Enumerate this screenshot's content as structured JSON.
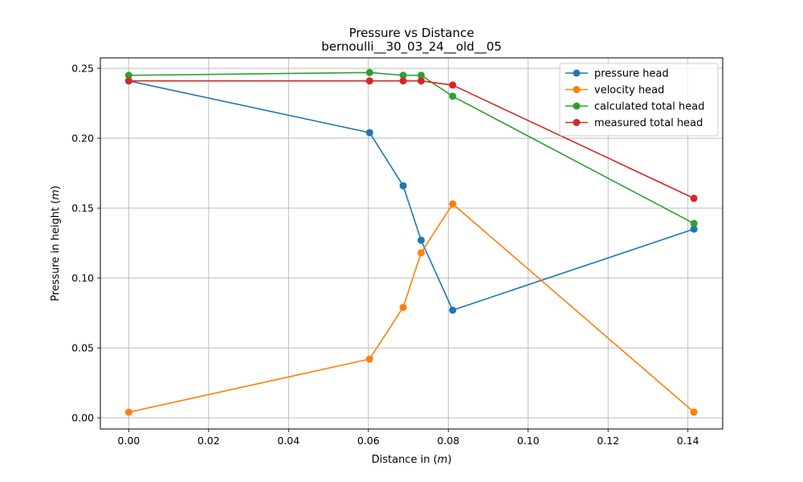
{
  "chart_data": {
    "type": "line",
    "title": "Pressure vs Distance",
    "subtitle": "bernoulli__30_03_24__old__05",
    "xlabel": "Distance in (",
    "xlabel_var": "m",
    "xlabel_end": ")",
    "ylabel": "Pressure in height (",
    "ylabel_var": "m",
    "ylabel_end": ")",
    "xlim": [
      -0.0071,
      0.1487
    ],
    "ylim": [
      -0.008,
      0.2575
    ],
    "xticks": [
      0.0,
      0.02,
      0.04,
      0.06,
      0.08,
      0.1,
      0.12,
      0.14
    ],
    "xtick_labels": [
      "0.00",
      "0.02",
      "0.04",
      "0.06",
      "0.08",
      "0.10",
      "0.12",
      "0.14"
    ],
    "yticks": [
      0.0,
      0.05,
      0.1,
      0.15,
      0.2,
      0.25
    ],
    "ytick_labels": [
      "0.00",
      "0.05",
      "0.10",
      "0.15",
      "0.20",
      "0.25"
    ],
    "grid": true,
    "legend_position": "top-right",
    "x": [
      0.0,
      0.0603,
      0.0687,
      0.0732,
      0.0811,
      0.1415
    ],
    "series": [
      {
        "name": "pressure head",
        "color": "#1f77b4",
        "values": [
          0.241,
          0.204,
          0.166,
          0.127,
          0.077,
          0.135
        ]
      },
      {
        "name": "velocity head",
        "color": "#ff7f0e",
        "values": [
          0.004,
          0.042,
          0.079,
          0.118,
          0.153,
          0.004
        ]
      },
      {
        "name": "calculated total head",
        "color": "#2ca02c",
        "values": [
          0.245,
          0.247,
          0.245,
          0.245,
          0.23,
          0.139
        ]
      },
      {
        "name": "measured total head",
        "color": "#d62728",
        "values": [
          0.241,
          0.241,
          0.241,
          0.241,
          0.238,
          0.157
        ]
      }
    ]
  }
}
